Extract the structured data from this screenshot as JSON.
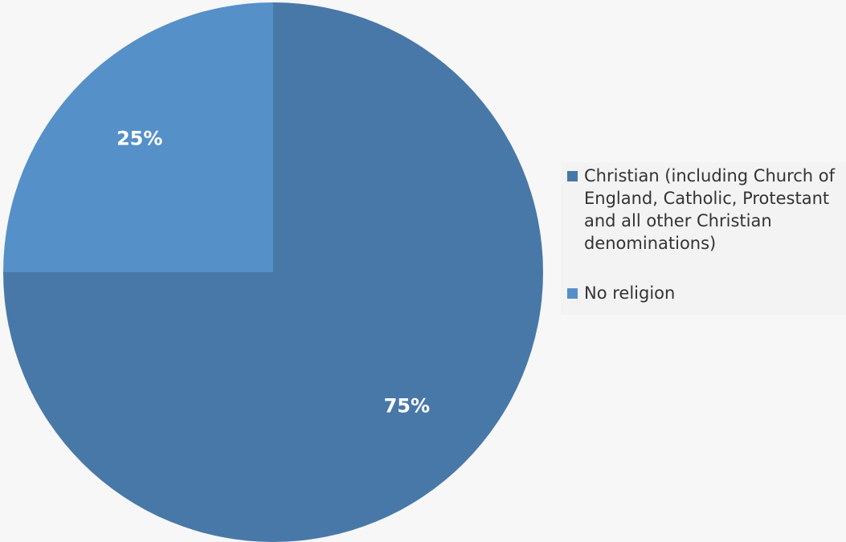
{
  "chart_data": {
    "type": "pie",
    "title": "",
    "series": [
      {
        "name": "Christian (including Church of England, Catholic, Protestant and all other Christian denominations)",
        "value": 75,
        "label": "75%",
        "color": "#4878a8"
      },
      {
        "name": "No religion",
        "value": 25,
        "label": "25%",
        "color": "#5590c8"
      }
    ],
    "legend": {
      "position": "right"
    }
  }
}
